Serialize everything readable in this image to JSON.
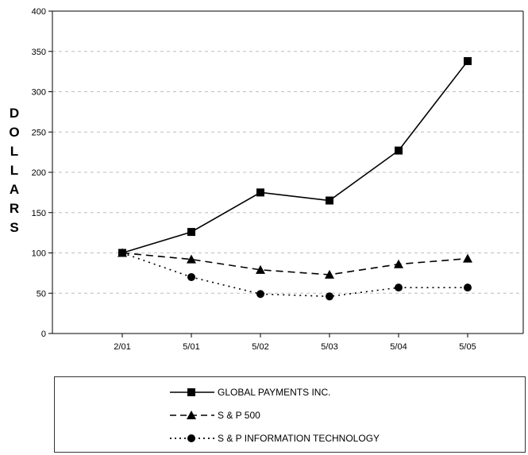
{
  "chart_data": {
    "type": "line",
    "ylabel": "DOLLARS",
    "ylim": [
      0,
      400
    ],
    "yticks": [
      "0",
      "50",
      "100",
      "150",
      "200",
      "250",
      "300",
      "350",
      "400"
    ],
    "categories": [
      "2/01",
      "5/01",
      "5/02",
      "5/03",
      "5/04",
      "5/05"
    ],
    "grid": "horizontal dashed",
    "legend_position": "bottom",
    "series": [
      {
        "name": "GLOBAL PAYMENTS INC.",
        "values": [
          100,
          126,
          175,
          165,
          227,
          338
        ],
        "marker": "square",
        "line": "solid",
        "color": "#000000"
      },
      {
        "name": "S & P 500",
        "values": [
          100,
          92,
          79,
          73,
          86,
          93
        ],
        "marker": "triangle",
        "line": "dashed",
        "color": "#000000"
      },
      {
        "name": "S & P INFORMATION TECHNOLOGY",
        "values": [
          100,
          70,
          49,
          46,
          57,
          57
        ],
        "marker": "circle",
        "line": "dotted",
        "color": "#000000"
      }
    ]
  }
}
